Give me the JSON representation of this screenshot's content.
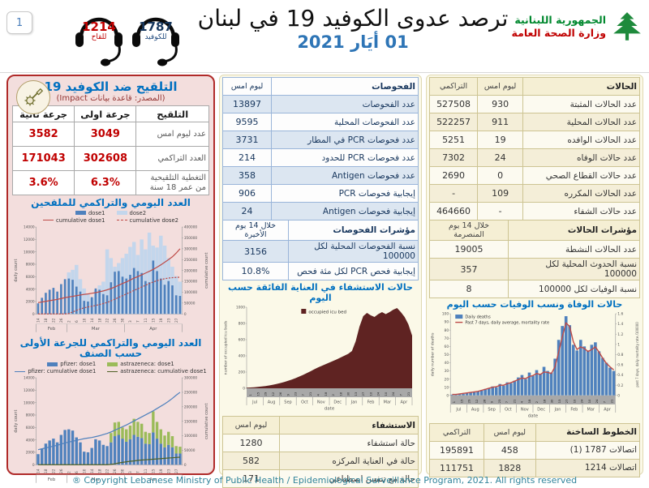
{
  "page": {
    "badge_number": "1",
    "footer": "® Copyright Lebanese Ministry of Public Health / Epidemiological Surveillance Program, 2021. All rights reserved"
  },
  "colors": {
    "accent_blue": "#0070c0",
    "value_red": "#c00000",
    "gov_green": "#00882e",
    "panel_pink": "#f3dedd",
    "panel_cream": "#fbf9e8"
  },
  "header": {
    "title": "ترصد عدوى الكوفيد 19 في لبنان",
    "date": "01 أيَار 2021",
    "gov_line1": "الجمهورية اللبنانية",
    "gov_line2": "وزارة الصحة العامة",
    "hotline_covid": {
      "number": "1787",
      "label": "للكوفيد"
    },
    "hotline_vaccine": {
      "number": "1214",
      "label": "للقاح"
    }
  },
  "vaccination": {
    "title": "التلقيح ضد الكوفيد 19",
    "source": "(المصدر: قاعدة بيانات Impact)",
    "table": {
      "header": [
        "التلقيح",
        "جرعة اولى",
        "جرعة ثانية"
      ],
      "rows": [
        [
          "عدد ليوم امس",
          "3049",
          "3582"
        ],
        [
          "العدد التراكمي",
          "302608",
          "171043"
        ],
        [
          "التغطية التلقيحية\nمن عمر 18 سنة",
          "6.3%",
          "3.6%"
        ]
      ]
    }
  },
  "tests": {
    "table": {
      "header": [
        "الفحوصات",
        "ليوم امس"
      ],
      "rows": [
        [
          "عدد الفحوصات",
          "13897"
        ],
        [
          "عدد الفحوصات المحلية",
          "9595"
        ],
        [
          "عدد فحوصات PCR في المطار",
          "3731"
        ],
        [
          "عدد فحوصات PCR للحدود",
          "214"
        ],
        [
          "عدد فحوصات Antigen",
          "358"
        ],
        [
          "إيجابية فحوصات PCR",
          "906"
        ],
        [
          "إيجابية فحوصات Antigen",
          "24"
        ]
      ]
    },
    "indicators": {
      "header": [
        "مؤشرات الفحوصات",
        "خلال 14 يوم الأخيرة"
      ],
      "rows": [
        [
          "نسبة الفحوصات المحلية لكل 100000",
          "3156"
        ],
        [
          "إيجابية فحص PCR لكل مئة فحص",
          "10.8%"
        ]
      ]
    }
  },
  "hospitalization": {
    "table": {
      "header": [
        "الاستشفاء",
        "ليوم امس"
      ],
      "rows": [
        [
          "حالة استشفاء",
          "1280"
        ],
        [
          "حالة في العناية المركزه",
          "582"
        ],
        [
          "حالة مع تنفس اصطناعي",
          "171"
        ]
      ]
    }
  },
  "cases": {
    "table": {
      "header": [
        "الحالات",
        "ليوم امس",
        "التراكمي"
      ],
      "rows": [
        [
          "عدد الحالات المثبتة",
          "930",
          "527508"
        ],
        [
          "عدد الحالات المحلية",
          "911",
          "522257"
        ],
        [
          "عدد الحالات الوافده",
          "19",
          "5251"
        ],
        [
          "عدد حالات الوفاه",
          "24",
          "7302"
        ],
        [
          "عدد حالات القطاع الصحي",
          "0",
          "2690"
        ],
        [
          "عدد الحالات المكرره",
          "109",
          "-"
        ],
        [
          "عدد حالات الشفاء",
          "-",
          "464660"
        ]
      ]
    },
    "indicators": {
      "header": [
        "مؤشرات الحالات",
        "خلال 14 يوم المنصرمة"
      ],
      "rows": [
        [
          "عدد الحالات النشطة",
          "19005"
        ],
        [
          "نسبة الحدوث المحلية لكل 100000",
          "357"
        ],
        [
          "نسبة الوفيات لكل 100000",
          "8"
        ]
      ]
    }
  },
  "hotlines": {
    "table": {
      "header": [
        "الخطوط الساخنة",
        "ليوم امس",
        "التراكمي"
      ],
      "rows": [
        [
          "اتصالات 1787 (1)",
          "458",
          "195891"
        ],
        [
          "اتصالات 1214",
          "1828",
          "111751"
        ]
      ]
    }
  },
  "chart_data": [
    {
      "id": "chart-vacc-daily",
      "type": "bar",
      "title": "العدد اليومي والتراكمي للملقحين",
      "ylabel_left": "daily count",
      "ylabel_right": "cumulative count",
      "left_max": 14000,
      "left_step": 2000,
      "right_max": 400000,
      "right_step": 50000,
      "bar_mode": "overlay",
      "tick_every": 2,
      "x_day_ticks": [
        "14",
        "18",
        "22",
        "26",
        "2",
        "6",
        "10",
        "14",
        "18",
        "22",
        "26",
        "30",
        "3",
        "7",
        "11",
        "15",
        "19",
        "23",
        "27"
      ],
      "month_groups": [
        {
          "label": "Feb",
          "bars": 8
        },
        {
          "label": "Mar",
          "bars": 15
        },
        {
          "label": "Apr",
          "bars": 15
        }
      ],
      "series": [
        {
          "name": "dose1",
          "type": "bar",
          "color": "#4f81bd",
          "bar_width": 0.55,
          "values": [
            1700,
            2600,
            3400,
            3900,
            4200,
            3600,
            4800,
            5600,
            5700,
            5500,
            4400,
            3600,
            2100,
            2000,
            2700,
            4100,
            3900,
            3200,
            3000,
            5100,
            6800,
            6900,
            6000,
            5700,
            6300,
            7400,
            6900,
            6600,
            5300,
            5100,
            8600,
            6900,
            5700,
            4700,
            5300,
            4600,
            3000,
            2900
          ]
        },
        {
          "name": "dose2",
          "type": "bar",
          "color": "#c3d6ec",
          "bar_width": 0.95,
          "values": [
            0,
            0,
            0,
            0,
            0,
            0,
            0,
            300,
            6700,
            7100,
            7900,
            5600,
            4100,
            3300,
            2600,
            3800,
            4600,
            5200,
            10400,
            9000,
            7600,
            8200,
            9000,
            9700,
            10800,
            11600,
            9500,
            12000,
            10400,
            13100,
            11000,
            10700,
            12600,
            11000,
            9000,
            7600,
            6100,
            5200
          ]
        },
        {
          "name": "cumulative dose1",
          "type": "line",
          "color": "#be4b48",
          "values": [
            52000,
            55000,
            58000,
            61000,
            64000,
            67000,
            71000,
            75000,
            78000,
            81000,
            84000,
            87000,
            90000,
            92000,
            95000,
            98000,
            102000,
            106000,
            111000,
            117000,
            124000,
            132000,
            140000,
            147000,
            156000,
            165000,
            172000,
            180000,
            188000,
            196000,
            205000,
            215000,
            226000,
            238000,
            250000,
            263000,
            280000,
            300000
          ]
        },
        {
          "name": "cumulative dose2",
          "type": "line",
          "color": "#be4b48",
          "dash": true,
          "values": [
            0,
            0,
            0,
            0,
            0,
            0,
            0,
            0,
            2000,
            9000,
            16000,
            23000,
            28000,
            32000,
            35000,
            39000,
            43000,
            48000,
            53000,
            60000,
            68000,
            76000,
            84000,
            92000,
            100000,
            108000,
            116000,
            124000,
            132000,
            140000,
            147000,
            153000,
            158000,
            162000,
            165000,
            167000,
            168000,
            169000
          ]
        }
      ]
    },
    {
      "id": "chart-vacc-brand",
      "type": "bar",
      "title": "العدد اليومي والتراكمي للجرعة الأولى حسب الصنف",
      "title_lines": [
        "العدد اليومي والتراكمي للجرعة الأولى",
        "حسب الصنف"
      ],
      "ylabel_left": "daily count",
      "ylabel_right": "cumulative count",
      "left_max": 14000,
      "left_step": 2000,
      "right_max": 300000,
      "right_step": 50000,
      "bar_mode": "stacked",
      "tick_every": 2,
      "x_day_ticks": [
        "14",
        "18",
        "22",
        "26",
        "2",
        "6",
        "10",
        "14",
        "18",
        "22",
        "26",
        "30",
        "3",
        "7",
        "11",
        "15",
        "19",
        "23",
        "27"
      ],
      "month_groups": [
        {
          "label": "Feb",
          "bars": 8
        },
        {
          "label": "Mar",
          "bars": 15
        },
        {
          "label": "Apr",
          "bars": 15
        }
      ],
      "series": [
        {
          "name": "pfizer: dose1",
          "type": "bar",
          "color": "#4f81bd",
          "bar_width": 0.72,
          "values": [
            1700,
            2600,
            3400,
            3900,
            4200,
            3600,
            4800,
            5600,
            5700,
            5500,
            4400,
            3600,
            2100,
            2000,
            2700,
            4100,
            3900,
            3200,
            3000,
            3600,
            4600,
            4800,
            4200,
            3700,
            4100,
            4800,
            4500,
            4300,
            3400,
            3300,
            5200,
            4200,
            3400,
            2800,
            3200,
            2800,
            1800,
            1800
          ]
        },
        {
          "name": "astrazeneca: dose1",
          "type": "bar",
          "color": "#9bbb59",
          "bar_width": 0.72,
          "values": [
            0,
            0,
            0,
            0,
            0,
            0,
            0,
            0,
            0,
            0,
            0,
            0,
            0,
            0,
            0,
            0,
            0,
            0,
            0,
            1500,
            2200,
            2100,
            1800,
            2000,
            2200,
            2600,
            2400,
            2300,
            1900,
            1800,
            3400,
            2700,
            2300,
            1900,
            2100,
            1800,
            1200,
            1100
          ]
        },
        {
          "name": "pfizer: cumulative dose1",
          "type": "line",
          "color": "#4f81bd",
          "values": [
            52000,
            55000,
            58000,
            61000,
            64000,
            67000,
            71000,
            75000,
            78000,
            81000,
            84000,
            87000,
            90000,
            92000,
            94000,
            97000,
            100000,
            104000,
            108000,
            113000,
            119000,
            125000,
            131000,
            137000,
            144000,
            151000,
            158000,
            165000,
            172000,
            179000,
            186000,
            194000,
            202000,
            210000,
            219000,
            229000,
            240000,
            250000
          ]
        },
        {
          "name": "astrazeneca: cumulative dose1",
          "type": "line",
          "color": "#4f6228",
          "values": [
            0,
            0,
            0,
            0,
            0,
            0,
            0,
            0,
            0,
            0,
            0,
            0,
            0,
            0,
            0,
            0,
            0,
            0,
            0,
            1000,
            3000,
            6000,
            8000,
            10000,
            12000,
            13000,
            15000,
            16000,
            17000,
            18000,
            19000,
            20000,
            21000,
            22000,
            23000,
            24000,
            25000,
            26000
          ]
        }
      ]
    },
    {
      "id": "chart-icu",
      "type": "area",
      "title": "حالات الاستشفاء في العناية الفائقة حسب اليوم",
      "legend": "occupied icu bed",
      "color": "#5f2322",
      "ylabel": "number of occupied icu beds",
      "xlabel": "date",
      "left_max": 1000,
      "left_step": 200,
      "months": [
        "Jul",
        "Aug",
        "Sep",
        "Oct",
        "Nov",
        "Dec",
        "Jan",
        "Feb",
        "Mar",
        "Apr"
      ],
      "day_ticks": [
        "1",
        "15",
        "29",
        "12",
        "26",
        "9",
        "23",
        "7",
        "21",
        "4",
        "18",
        "2",
        "16",
        "30",
        "13",
        "27",
        "10",
        "24",
        "10",
        "24",
        "7",
        "21"
      ],
      "values": [
        8,
        10,
        13,
        17,
        22,
        28,
        35,
        44,
        54,
        65,
        78,
        92,
        108,
        125,
        145,
        165,
        188,
        210,
        235,
        258,
        278,
        298,
        318,
        338,
        358,
        380,
        402,
        425,
        460,
        580,
        760,
        890,
        930,
        900,
        880,
        915,
        940,
        915,
        940,
        970,
        990,
        940,
        880,
        790,
        650
      ]
    },
    {
      "id": "chart-deaths",
      "type": "bar",
      "title": "حالات الوفاة ونسب الوفيات حسب اليوم",
      "legend_bar": "Daily deaths",
      "legend_line": "Past 7 days, daily average, mortality rate",
      "bar_color": "#4f81bd",
      "line_color": "#be4b48",
      "ylabel_left": "daily number of deaths",
      "ylabel_right": "past 7 days, daily mortality rate /100000",
      "xlabel": "date",
      "left_max": 100,
      "left_step": 10,
      "right_max": 1.6,
      "right_step": 0.2,
      "months": [
        "Jul",
        "Aug",
        "Sep",
        "Oct",
        "Nov",
        "Dec",
        "Jan",
        "Feb",
        "Mar",
        "Apr"
      ],
      "day_ticks": [
        "1",
        "15",
        "29",
        "12",
        "26",
        "9",
        "23",
        "7",
        "21",
        "4",
        "18",
        "2",
        "16",
        "30",
        "13",
        "27",
        "10",
        "24",
        "10",
        "24",
        "7",
        "21"
      ],
      "bars": [
        1,
        1,
        2,
        2,
        3,
        4,
        4,
        5,
        6,
        8,
        9,
        11,
        10,
        14,
        12,
        16,
        15,
        18,
        22,
        25,
        20,
        28,
        24,
        31,
        26,
        35,
        30,
        28,
        45,
        68,
        85,
        97,
        86,
        62,
        55,
        68,
        60,
        55,
        62,
        65,
        54,
        46,
        40,
        34,
        30
      ],
      "line": [
        0.02,
        0.02,
        0.03,
        0.04,
        0.05,
        0.06,
        0.07,
        0.08,
        0.1,
        0.12,
        0.14,
        0.16,
        0.17,
        0.2,
        0.2,
        0.23,
        0.25,
        0.28,
        0.31,
        0.34,
        0.33,
        0.37,
        0.39,
        0.43,
        0.41,
        0.46,
        0.45,
        0.43,
        0.56,
        0.85,
        1.15,
        1.42,
        1.35,
        1.05,
        0.9,
        0.95,
        0.92,
        0.86,
        0.9,
        0.95,
        0.85,
        0.73,
        0.63,
        0.56,
        0.5
      ]
    }
  ]
}
